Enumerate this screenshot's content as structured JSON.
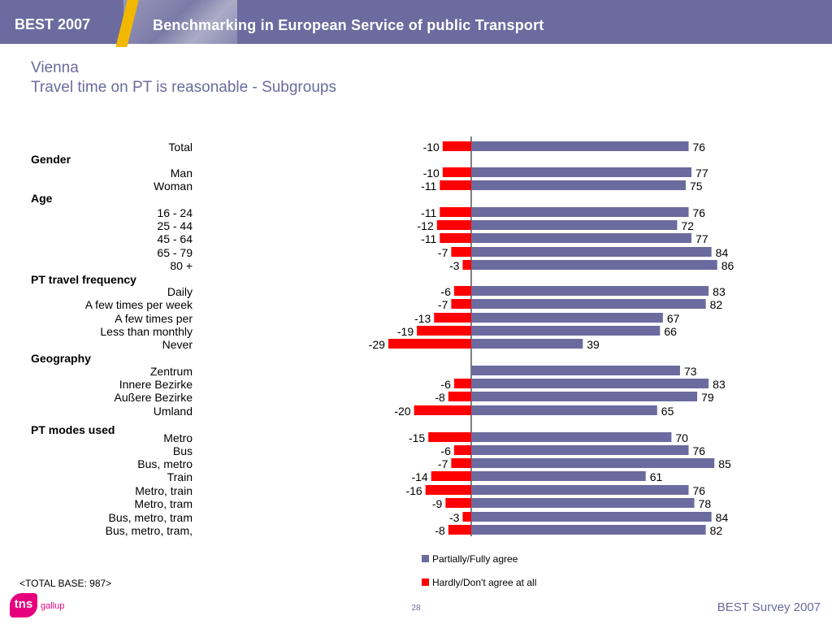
{
  "header": {
    "brand": "BEST 2007",
    "title": "Benchmarking in European Service of public Transport"
  },
  "slide": {
    "title": "Vienna",
    "subtitle": "Travel time on PT is reasonable - Subgroups"
  },
  "colors": {
    "positive": "#6b6b9f",
    "negative": "#ff0000",
    "header_bg": "#6b6b9f",
    "accent": "#f2b800"
  },
  "chart_data": {
    "type": "bar",
    "orientation": "horizontal",
    "categories": [
      "Total",
      "Man",
      "Woman",
      "16 - 24",
      "25 - 44",
      "45 - 64",
      "65 - 79",
      "80 +",
      "Daily",
      "A few times per week",
      "A few times per",
      "Less than monthly",
      "Never",
      "Zentrum",
      "Innere Bezirke",
      "Außere Bezirke",
      "Umland",
      "Metro",
      "Bus",
      "Bus, metro",
      "Train",
      "Metro, train",
      "Metro, tram",
      "Bus, metro, tram",
      "Bus, metro, tram,"
    ],
    "groups": [
      {
        "name": "Gender",
        "before_index": 1
      },
      {
        "name": "Age",
        "before_index": 3
      },
      {
        "name": "PT travel frequency",
        "before_index": 8
      },
      {
        "name": "Geography",
        "before_index": 13
      },
      {
        "name": "PT modes used",
        "before_index": 17
      }
    ],
    "series": [
      {
        "name": "Partially/Fully agree",
        "color": "#6b6b9f",
        "values": [
          76,
          77,
          75,
          76,
          72,
          77,
          84,
          86,
          83,
          82,
          67,
          66,
          39,
          73,
          83,
          79,
          65,
          70,
          76,
          85,
          61,
          76,
          78,
          84,
          82
        ]
      },
      {
        "name": "Hardly/Don't agree at all",
        "color": "#ff0000",
        "values": [
          -10,
          -10,
          -11,
          -11,
          -12,
          -11,
          -7,
          -3,
          -6,
          -7,
          -13,
          -19,
          -29,
          null,
          -6,
          -8,
          -20,
          -15,
          -6,
          -7,
          -14,
          -16,
          -9,
          -3,
          -8
        ]
      }
    ],
    "legend_position": "bottom"
  },
  "footer": {
    "base": "<TOTAL BASE: 987>",
    "logo_text": "tns",
    "logo_sub": "gallup",
    "page": "28",
    "survey": "BEST Survey 2007"
  }
}
